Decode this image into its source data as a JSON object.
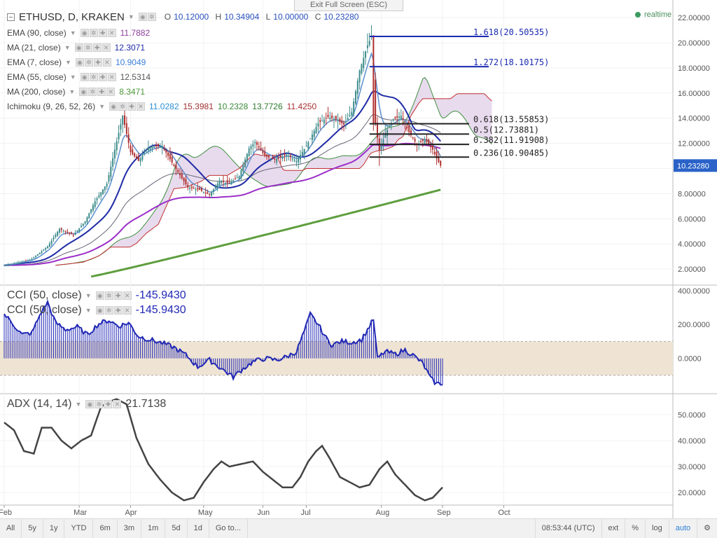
{
  "header": {
    "symbol": "ETHUSD, D, KRAKEN",
    "ohlc": {
      "o_label": "O",
      "o": "10.12000",
      "h_label": "H",
      "h": "10.34904",
      "l_label": "L",
      "l": "10.00000",
      "c_label": "C",
      "c": "10.23280"
    },
    "exit_fullscreen": "Exit Full Screen (ESC)",
    "realtime": "realtime"
  },
  "indicators": [
    {
      "name": "EMA (90, close)",
      "values": [
        "11.7882"
      ],
      "colors": [
        "#8e3f9c"
      ]
    },
    {
      "name": "MA (21, close)",
      "values": [
        "12.3071"
      ],
      "colors": [
        "#1f2aa8"
      ]
    },
    {
      "name": "EMA (7, close)",
      "values": [
        "10.9049"
      ],
      "colors": [
        "#3d7fd8"
      ]
    },
    {
      "name": "EMA (55, close)",
      "values": [
        "12.5314"
      ],
      "colors": [
        "#555555"
      ]
    },
    {
      "name": "MA (200, close)",
      "values": [
        "8.3471"
      ],
      "colors": [
        "#4d9a3a"
      ]
    },
    {
      "name": "Ichimoku (9, 26, 52, 26)",
      "values": [
        "11.0282",
        "15.3981",
        "10.2328",
        "13.7726",
        "11.4250"
      ],
      "colors": [
        "#2a8fd5",
        "#a03030",
        "#3a8a3a",
        "#2d7a2d",
        "#a83030"
      ]
    }
  ],
  "panes": {
    "cci1": {
      "name": "CCI (50, close)",
      "value": "-145.9430"
    },
    "cci2": {
      "name": "CCI (50, close)",
      "value": "-145.9430"
    },
    "adx": {
      "name": "ADX (14, 14)",
      "value": "21.7138"
    }
  },
  "colors": {
    "up": "#3d8b8b",
    "down": "#b03030",
    "ema7": "#5b8fd0",
    "ma21": "#1d2aa5",
    "ema90": "#9c2fc9",
    "ema55": "#666677",
    "ma200": "#5e9e3e",
    "cloud_fill": "#e2d2ea",
    "kijun": "#c03030",
    "senkou": "#3f8f3f",
    "cci": "#2128b5",
    "cci_band": "#efe4d3",
    "adx": "#444444",
    "fib": "#1a2ab0"
  },
  "chart_data": [
    {
      "type": "candlestick",
      "title": "ETHUSD, D, KRAKEN",
      "ylim": [
        1,
        22.4
      ],
      "y_ticks": [
        "22.00000",
        "20.00000",
        "18.00000",
        "16.00000",
        "14.00000",
        "12.00000",
        "10.00000",
        "8.00000",
        "6.00000",
        "4.00000",
        "2.00000"
      ],
      "last_price": "10.23280",
      "close_keys": [
        [
          0,
          2.3
        ],
        [
          6,
          2.5
        ],
        [
          14,
          2.8
        ],
        [
          22,
          3.8
        ],
        [
          28,
          5.2
        ],
        [
          35,
          4.7
        ],
        [
          41,
          5.8
        ],
        [
          46,
          7.4
        ],
        [
          52,
          8.8
        ],
        [
          56,
          11.5
        ],
        [
          60,
          14.2
        ],
        [
          64,
          11.3
        ],
        [
          68,
          10.6
        ],
        [
          73,
          11.7
        ],
        [
          80,
          11.8
        ],
        [
          86,
          10.2
        ],
        [
          93,
          8.5
        ],
        [
          99,
          8.3
        ],
        [
          104,
          7.9
        ],
        [
          109,
          9.0
        ],
        [
          114,
          8.8
        ],
        [
          119,
          9.4
        ],
        [
          124,
          11.6
        ],
        [
          127,
          12.1
        ],
        [
          132,
          11.0
        ],
        [
          137,
          10.7
        ],
        [
          143,
          11.1
        ],
        [
          148,
          10.6
        ],
        [
          153,
          11.8
        ],
        [
          159,
          13.6
        ],
        [
          164,
          14.1
        ],
        [
          168,
          13.9
        ],
        [
          172,
          13.5
        ],
        [
          176,
          14.5
        ],
        [
          180,
          17.8
        ],
        [
          184,
          19.8
        ],
        [
          186,
          20.5
        ],
        [
          188,
          13.5
        ],
        [
          190,
          11.4
        ],
        [
          193,
          12.8
        ],
        [
          197,
          13.9
        ],
        [
          201,
          14.2
        ],
        [
          205,
          12.9
        ],
        [
          209,
          11.9
        ],
        [
          213,
          12.3
        ],
        [
          217,
          11.5
        ],
        [
          219,
          10.8
        ],
        [
          221,
          10.23
        ]
      ],
      "fibonacci": [
        {
          "label": "1.618(20.50535)",
          "value": 20.50535,
          "x_start": 185
        },
        {
          "label": "1.272(18.10175)",
          "value": 18.10175,
          "x_start": 185
        },
        {
          "label": "0.618(13.55853)",
          "value": 13.55853,
          "x_start": 185
        },
        {
          "label": "0.5(12.73881)",
          "value": 12.73881,
          "x_start": 185
        },
        {
          "label": "0.382(11.91908)",
          "value": 11.91908,
          "x_start": 185
        },
        {
          "label": "0.236(10.90485)",
          "value": 10.90485,
          "x_start": 185
        }
      ],
      "ma200_range": [
        1.4,
        8.35
      ]
    },
    {
      "type": "line",
      "name": "CCI (50, close)",
      "ylim": [
        -200,
        420
      ],
      "y_ticks": [
        "400.0000",
        "200.0000",
        "0.0000"
      ],
      "band": [
        100,
        -100
      ],
      "keys": [
        [
          0,
          260
        ],
        [
          4,
          210
        ],
        [
          9,
          140
        ],
        [
          14,
          150
        ],
        [
          19,
          280
        ],
        [
          22,
          330
        ],
        [
          26,
          210
        ],
        [
          31,
          170
        ],
        [
          37,
          185
        ],
        [
          42,
          140
        ],
        [
          48,
          205
        ],
        [
          53,
          225
        ],
        [
          58,
          190
        ],
        [
          63,
          210
        ],
        [
          68,
          130
        ],
        [
          74,
          110
        ],
        [
          80,
          90
        ],
        [
          86,
          65
        ],
        [
          92,
          20
        ],
        [
          98,
          -50
        ],
        [
          104,
          -10
        ],
        [
          110,
          -60
        ],
        [
          116,
          -110
        ],
        [
          121,
          -60
        ],
        [
          126,
          -20
        ],
        [
          132,
          0
        ],
        [
          138,
          -10
        ],
        [
          143,
          10
        ],
        [
          148,
          40
        ],
        [
          152,
          160
        ],
        [
          155,
          260
        ],
        [
          159,
          200
        ],
        [
          163,
          120
        ],
        [
          166,
          80
        ],
        [
          171,
          100
        ],
        [
          176,
          95
        ],
        [
          181,
          110
        ],
        [
          184,
          170
        ],
        [
          187,
          230
        ],
        [
          189,
          0
        ],
        [
          193,
          40
        ],
        [
          198,
          25
        ],
        [
          203,
          50
        ],
        [
          207,
          20
        ],
        [
          212,
          -30
        ],
        [
          216,
          -120
        ],
        [
          219,
          -150
        ],
        [
          222,
          -146
        ]
      ]
    },
    {
      "type": "line",
      "name": "ADX (14, 14)",
      "ylim": [
        16,
        57
      ],
      "y_ticks": [
        "50.0000",
        "40.0000",
        "30.0000",
        "20.0000"
      ],
      "keys": [
        [
          0,
          47
        ],
        [
          5,
          44
        ],
        [
          10,
          36
        ],
        [
          15,
          35
        ],
        [
          19,
          45
        ],
        [
          24,
          45
        ],
        [
          29,
          40
        ],
        [
          34,
          37
        ],
        [
          39,
          40
        ],
        [
          44,
          42
        ],
        [
          49,
          53
        ],
        [
          53,
          55
        ],
        [
          57,
          56
        ],
        [
          62,
          54
        ],
        [
          67,
          41
        ],
        [
          73,
          31
        ],
        [
          79,
          25
        ],
        [
          85,
          20
        ],
        [
          91,
          17
        ],
        [
          96,
          18
        ],
        [
          101,
          24
        ],
        [
          106,
          29
        ],
        [
          110,
          32
        ],
        [
          114,
          30
        ],
        [
          120,
          31
        ],
        [
          126,
          32
        ],
        [
          131,
          28
        ],
        [
          136,
          25
        ],
        [
          141,
          22
        ],
        [
          146,
          22
        ],
        [
          150,
          26
        ],
        [
          154,
          32
        ],
        [
          158,
          36
        ],
        [
          161,
          38
        ],
        [
          165,
          33
        ],
        [
          170,
          26
        ],
        [
          175,
          24
        ],
        [
          180,
          22
        ],
        [
          185,
          23
        ],
        [
          190,
          29
        ],
        [
          194,
          32
        ],
        [
          198,
          27
        ],
        [
          203,
          23
        ],
        [
          208,
          19
        ],
        [
          213,
          17
        ],
        [
          217,
          18
        ],
        [
          222,
          22
        ]
      ]
    }
  ],
  "x_axis": {
    "labels": [
      "Feb",
      "Mar",
      "Apr",
      "May",
      "Jun",
      "Jul",
      "Aug",
      "Sep",
      "Oct"
    ],
    "label_days": [
      0,
      38,
      64,
      101,
      131,
      153,
      191,
      222,
      253
    ]
  },
  "bottom_bar": {
    "ranges": [
      "All",
      "5y",
      "1y",
      "YTD",
      "6m",
      "3m",
      "1m",
      "5d",
      "1d"
    ],
    "goto": "Go to...",
    "clock": "08:53:44 (UTC)",
    "ext": "ext",
    "percent": "%",
    "log": "log",
    "auto": "auto"
  }
}
